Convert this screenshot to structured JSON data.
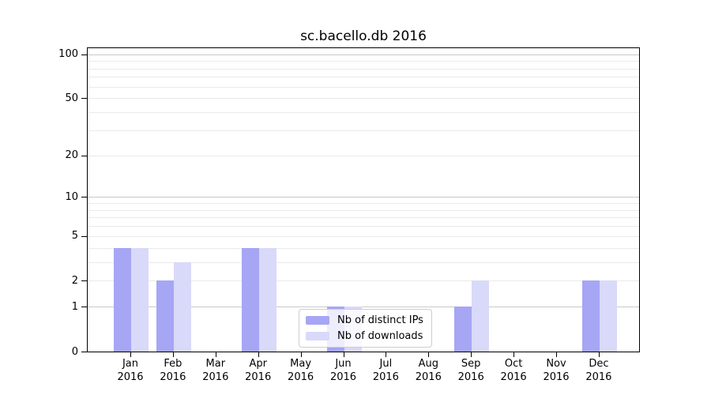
{
  "chart_data": {
    "type": "bar",
    "title": "sc.bacello.db 2016",
    "categories": [
      "Jan",
      "Feb",
      "Mar",
      "Apr",
      "May",
      "Jun",
      "Jul",
      "Aug",
      "Sep",
      "Oct",
      "Nov",
      "Dec"
    ],
    "year": "2016",
    "series": [
      {
        "name": "Nb of distinct IPs",
        "color": "#a6a6f5",
        "values": [
          4,
          2,
          0,
          4,
          0,
          1,
          0,
          0,
          1,
          0,
          0,
          2
        ]
      },
      {
        "name": "Nb of downloads",
        "color": "#d9d9f9",
        "values": [
          4,
          3,
          0,
          4,
          0,
          1,
          0,
          0,
          2,
          0,
          0,
          2
        ]
      }
    ],
    "xlabel": "",
    "ylabel": "",
    "yscale": "log1p",
    "ylim": [
      0,
      110
    ],
    "ytick_values": [
      0,
      1,
      2,
      5,
      10,
      20,
      50,
      100
    ],
    "grid": {
      "major": [
        1,
        10,
        100
      ],
      "minor": [
        2,
        3,
        4,
        5,
        6,
        7,
        8,
        9,
        20,
        30,
        40,
        50,
        60,
        70,
        80,
        90
      ]
    },
    "legend": {
      "position": "lower-center"
    },
    "colors": {
      "axis": "#000000",
      "grid_major": "#c9c9c9",
      "grid_minor": "#eaeaea"
    }
  }
}
